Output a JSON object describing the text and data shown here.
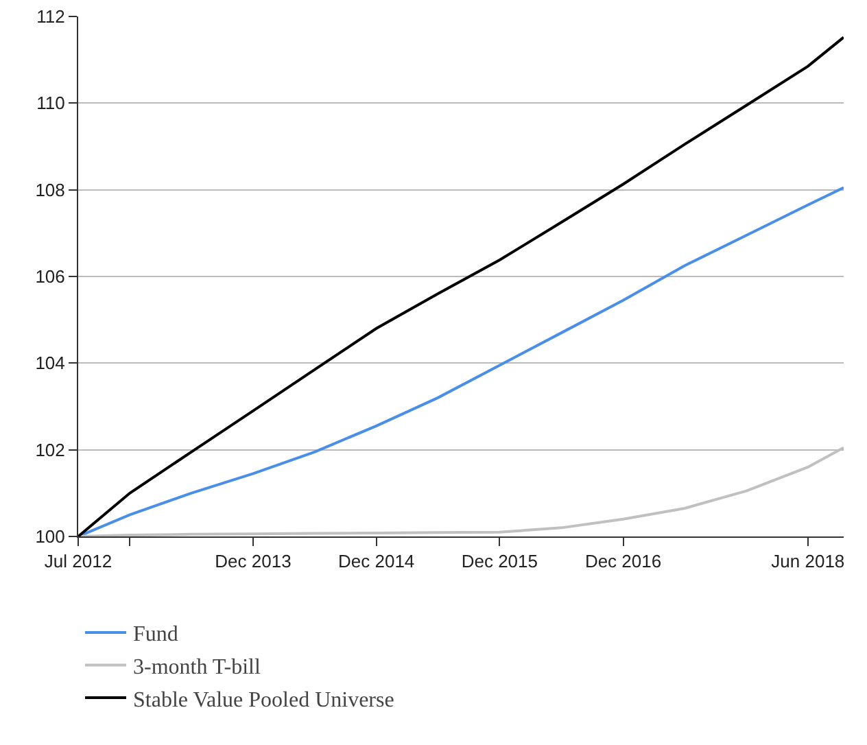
{
  "chart_data": {
    "type": "line",
    "xlim": [
      "2012-07-01",
      "2018-09-15"
    ],
    "ylim": [
      100,
      112
    ],
    "xticks": [
      {
        "value": "2012-07-01",
        "label": "Jul 2012"
      },
      {
        "value": "2012-12-01",
        "label": null
      },
      {
        "value": "2013-12-01",
        "label": "Dec 2013"
      },
      {
        "value": "2014-12-01",
        "label": "Dec 2014"
      },
      {
        "value": "2015-12-01",
        "label": "Dec 2015"
      },
      {
        "value": "2016-12-01",
        "label": "Dec 2016"
      },
      {
        "value": "2018-06-01",
        "label": "Jun 2018"
      }
    ],
    "yticks": [
      100,
      102,
      104,
      106,
      108,
      110,
      112
    ],
    "x": [
      "2012-07-01",
      "2012-12-01",
      "2013-06-01",
      "2013-12-01",
      "2014-06-01",
      "2014-12-01",
      "2015-06-01",
      "2015-12-01",
      "2016-06-01",
      "2016-12-01",
      "2017-06-01",
      "2017-12-01",
      "2018-06-01",
      "2018-09-15"
    ],
    "series": [
      {
        "name": "Fund",
        "color": "#4a8fe7",
        "values": [
          100,
          100.5,
          101.0,
          101.45,
          101.95,
          102.55,
          103.2,
          103.95,
          104.7,
          105.45,
          106.25,
          106.95,
          107.65,
          108.05
        ]
      },
      {
        "name": "3-month T-bill",
        "color": "#c0c0c0",
        "values": [
          100,
          100.03,
          100.05,
          100.06,
          100.07,
          100.08,
          100.09,
          100.1,
          100.2,
          100.4,
          100.65,
          101.05,
          101.6,
          102.05
        ]
      },
      {
        "name": "Stable Value Pooled Universe",
        "color": "#000000",
        "values": [
          100,
          101.0,
          101.95,
          102.9,
          103.85,
          104.8,
          105.6,
          106.38,
          107.25,
          108.13,
          109.05,
          109.95,
          110.85,
          111.52
        ]
      }
    ],
    "grid": "y",
    "legend": "bottom left",
    "marker": "none",
    "line_style": "solid"
  }
}
